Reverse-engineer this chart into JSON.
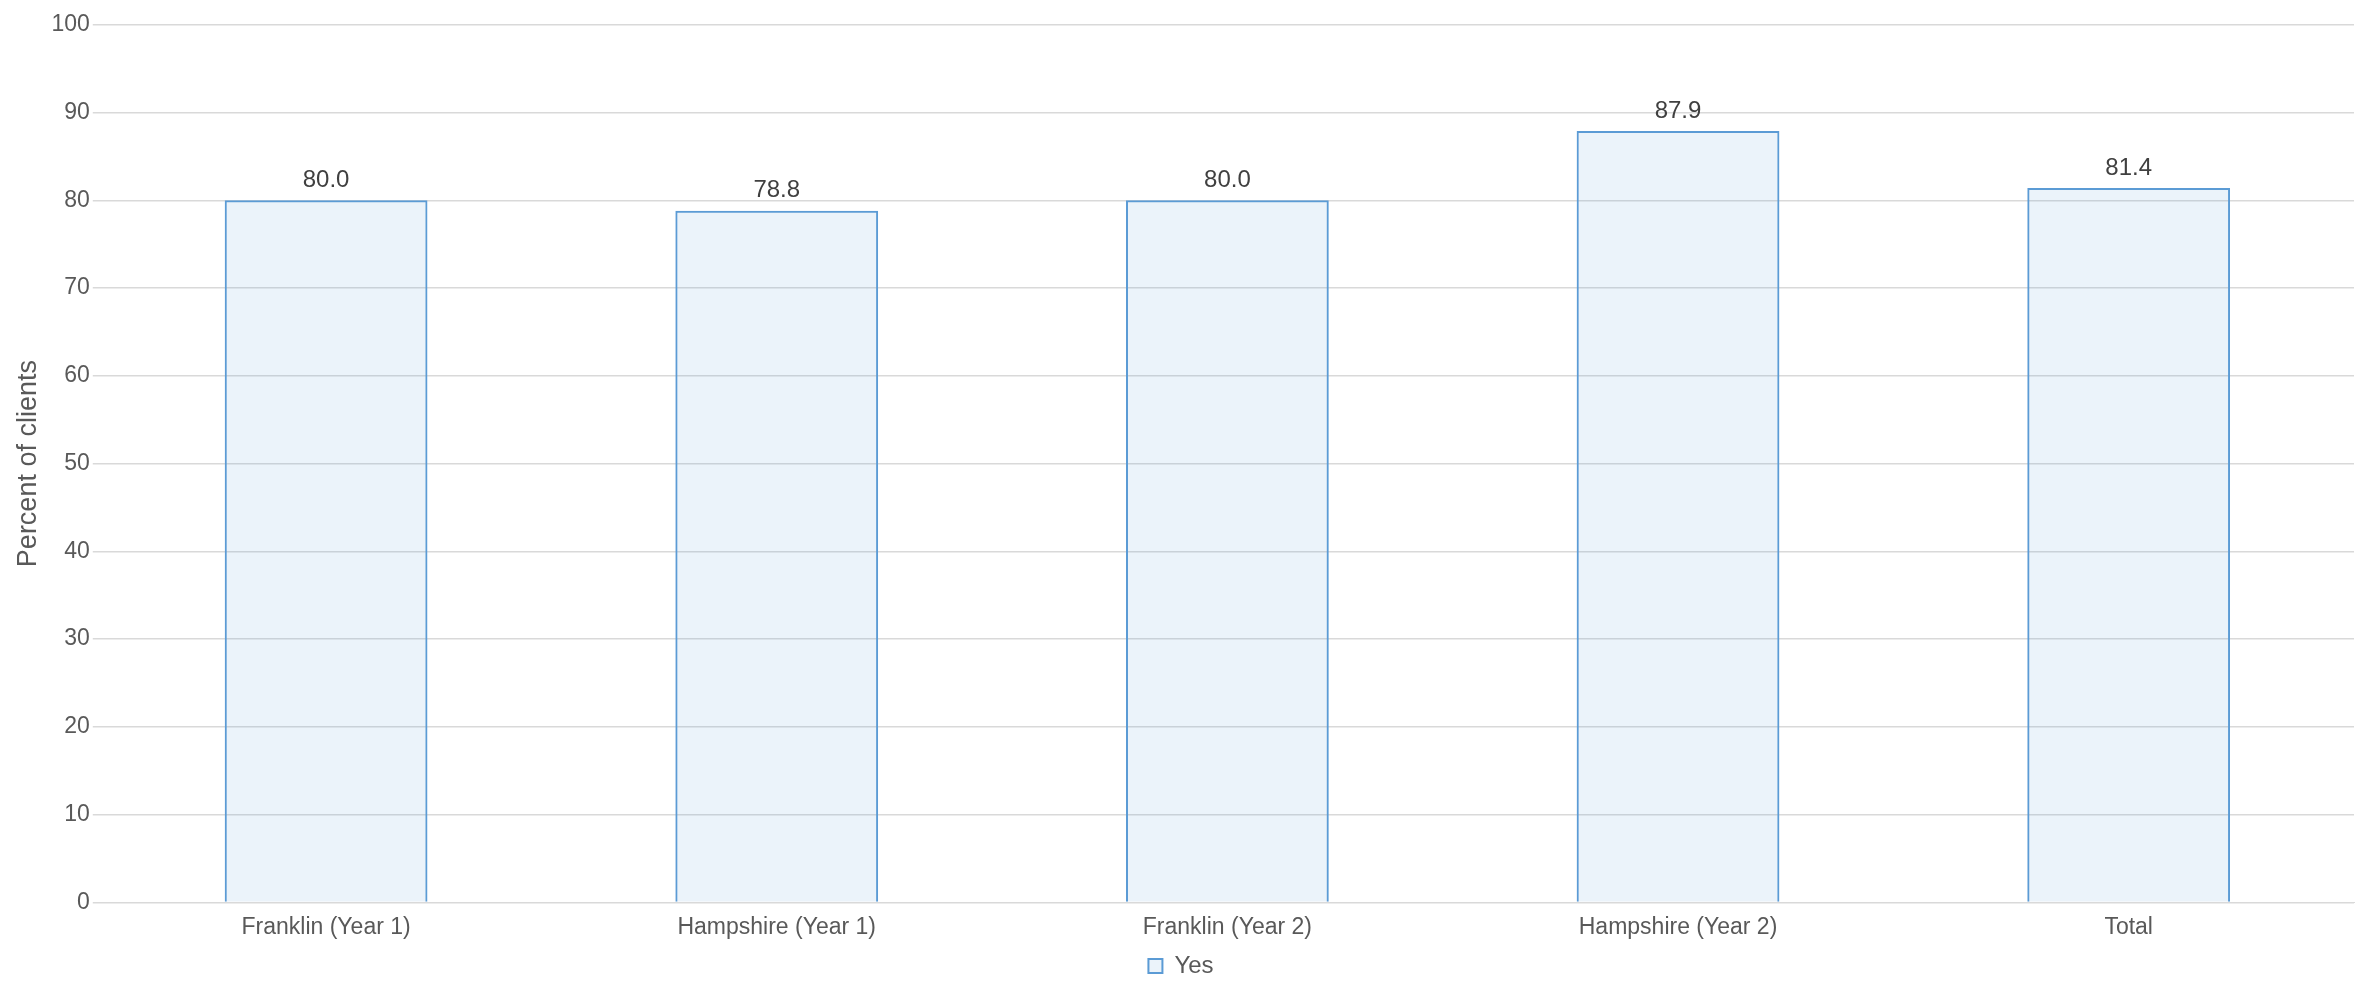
{
  "chart_data": {
    "type": "bar",
    "ylabel": "Percent of clients",
    "categories": [
      "Franklin (Year 1)",
      "Hampshire (Year 1)",
      "Franklin (Year 2)",
      "Hampshire (Year 2)",
      "Total"
    ],
    "series": [
      {
        "name": "Yes",
        "color": "#5b9bd5",
        "values": [
          80.0,
          78.8,
          80.0,
          87.9,
          81.4
        ],
        "value_labels": [
          "80.0",
          "78.8",
          "80.0",
          "87.9",
          "81.4"
        ]
      }
    ],
    "ylim": [
      0,
      100
    ],
    "yticks": [
      0,
      10,
      20,
      30,
      40,
      50,
      60,
      70,
      80,
      90,
      100
    ],
    "grid": "y",
    "legend": "bottom"
  }
}
